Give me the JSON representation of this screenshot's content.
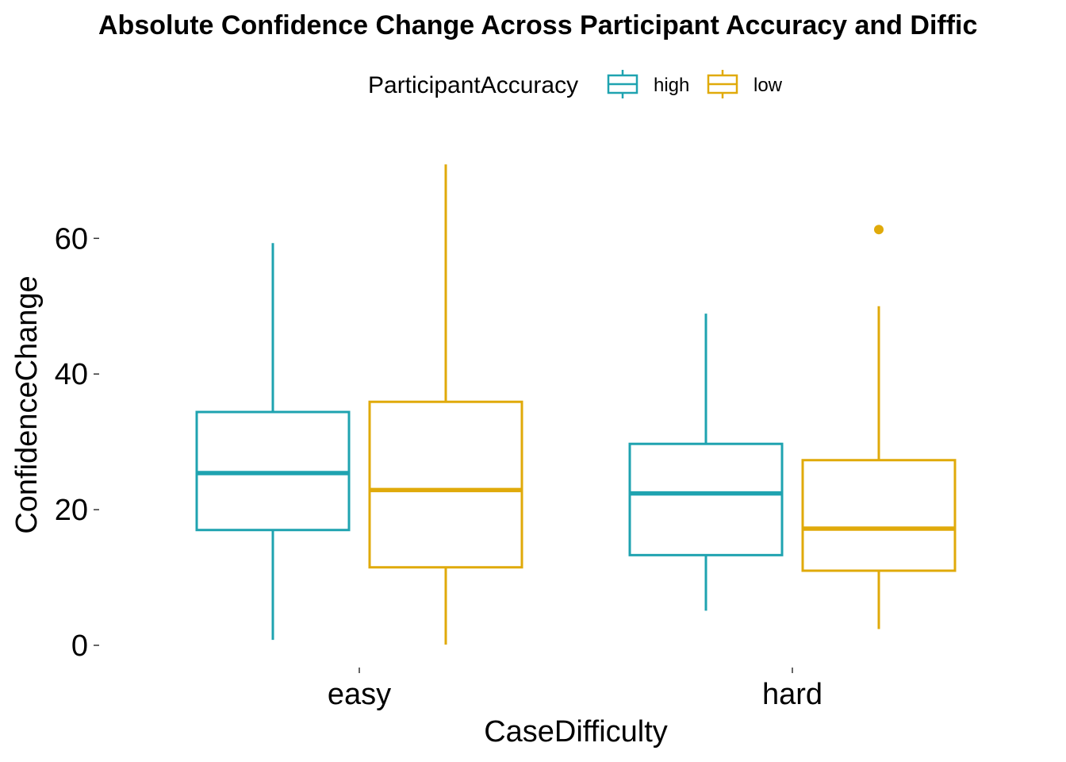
{
  "chart_data": {
    "type": "boxplot",
    "title": "Absolute Confidence Change Across Participant Accuracy and Diffic",
    "xlabel": "CaseDifficulty",
    "ylabel": "ConfidenceChange",
    "categories": [
      "easy",
      "hard"
    ],
    "ylim": [
      -2,
      73
    ],
    "yticks": [
      0,
      20,
      40,
      60
    ],
    "grid": false,
    "legend": {
      "title": "ParticipantAccuracy",
      "position": "top",
      "entries": [
        "high",
        "low"
      ]
    },
    "series": [
      {
        "name": "high",
        "color": "#1FA3B0",
        "boxes": [
          {
            "category": "easy",
            "min": 0.8,
            "q1": 17.0,
            "median": 25.4,
            "q3": 34.4,
            "max": 59.3,
            "outliers": []
          },
          {
            "category": "hard",
            "min": 5.1,
            "q1": 13.3,
            "median": 22.4,
            "q3": 29.7,
            "max": 48.9,
            "outliers": []
          }
        ]
      },
      {
        "name": "low",
        "color": "#E0AA0A",
        "boxes": [
          {
            "category": "easy",
            "min": 0.1,
            "q1": 11.5,
            "median": 22.9,
            "q3": 35.9,
            "max": 70.9,
            "outliers": []
          },
          {
            "category": "hard",
            "min": 2.4,
            "q1": 11.0,
            "median": 17.2,
            "q3": 27.3,
            "max": 50.0,
            "outliers": [
              61.3
            ]
          }
        ]
      }
    ]
  }
}
